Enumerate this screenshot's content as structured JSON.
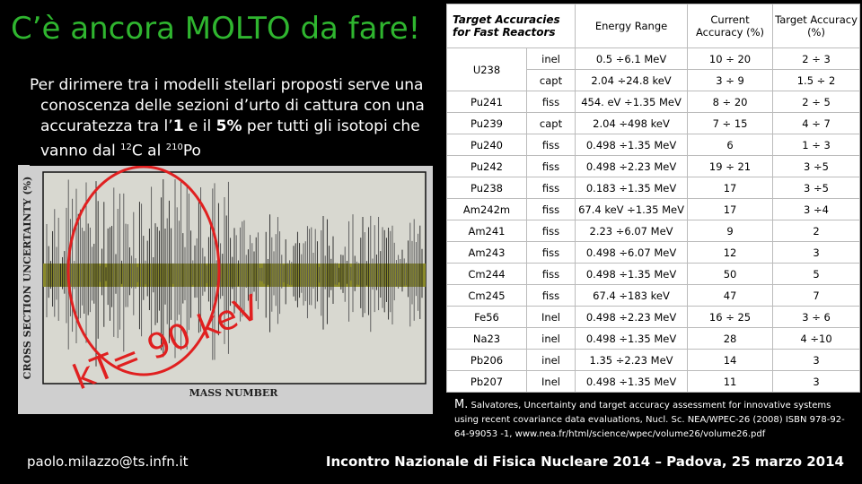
{
  "header": {
    "title": "C’è ancora MOLTO da fare!"
  },
  "paragraph": [
    "Per dirimere tra i modelli stellari proposti serve una conoscenza delle sezioni d’urto di cattura con  una accuratezza tra l’",
    "1",
    " e il ",
    "5%",
    " per tutti gli isotopi che vanno dal ",
    "12",
    "C al ",
    "210",
    "Po"
  ],
  "plot": {
    "y_label": "CROSS SECTION UNCERTAINTY (%)",
    "x_label": "MASS NUMBER",
    "annotation": "kT= 90 keV"
  },
  "table": {
    "header": [
      "Target Accuracies for Fast Reactors",
      "Energy Range",
      "Current Accuracy (%)",
      "Target Accuracy (%)"
    ],
    "rows": [
      [
        "U238",
        "inel",
        "0.5 ÷6.1 MeV",
        "10  ÷  20",
        "2  ÷  3"
      ],
      [
        "capt",
        "2.04 ÷24.8 keV",
        "3  ÷ 9",
        "1.5  ÷ 2"
      ],
      [
        "Pu241",
        "fiss",
        "454. eV ÷1.35 MeV",
        "8 ÷ 20",
        "2 ÷ 5"
      ],
      [
        "Pu239",
        "capt",
        "2.04 ÷498 keV",
        "7  ÷ 15",
        "4 ÷ 7"
      ],
      [
        "Pu240",
        "fiss",
        "0.498 ÷1.35 MeV",
        "6",
        "1 ÷ 3"
      ],
      [
        "Pu242",
        "fiss",
        "0.498 ÷2.23 MeV",
        "19  ÷ 21",
        "3 ÷5"
      ],
      [
        "Pu238",
        "fiss",
        "0.183 ÷1.35 MeV",
        "17",
        "3 ÷5"
      ],
      [
        "Am242m",
        "fiss",
        "67.4 keV ÷1.35 MeV",
        "17",
        "3 ÷4"
      ],
      [
        "Am241",
        "fiss",
        "2.23 ÷6.07 MeV",
        "9",
        "2"
      ],
      [
        "Am243",
        "fiss",
        "0.498 ÷6.07 MeV",
        "12",
        "3"
      ],
      [
        "Cm244",
        "fiss",
        "0.498 ÷1.35 MeV",
        "50",
        "5"
      ],
      [
        "Cm245",
        "fiss",
        "67.4 ÷183 keV",
        "47",
        "7"
      ],
      [
        "Fe56",
        "Inel",
        "0.498 ÷2.23 MeV",
        "16  ÷  25",
        "3 ÷ 6"
      ],
      [
        "Na23",
        "inel",
        "0.498 ÷1.35 MeV",
        "28",
        "4 ÷10"
      ],
      [
        "Pb206",
        "inel",
        "1.35  ÷2.23 MeV",
        "14",
        "3"
      ],
      [
        "Pb207",
        "Inel",
        "0.498 ÷1.35 MeV",
        "11",
        "3"
      ]
    ]
  },
  "citation": {
    "author": "M.",
    "author_rest": "Salvatores,",
    "text": "Uncertainty and target accuracy assessment for innovative systems using recent covariance data evaluations, Nucl. Sc. NEA/WPEC-26 (2008) ISBN 978-92-64-99053 -1, www.nea.fr/html/science/wpec/volume26/volume26.pdf"
  },
  "footer": {
    "email": "paolo.milazzo@ts.infn.it",
    "event": "Incontro Nazionale di Fisica Nucleare 2014 – Padova, 25 marzo 2014"
  }
}
